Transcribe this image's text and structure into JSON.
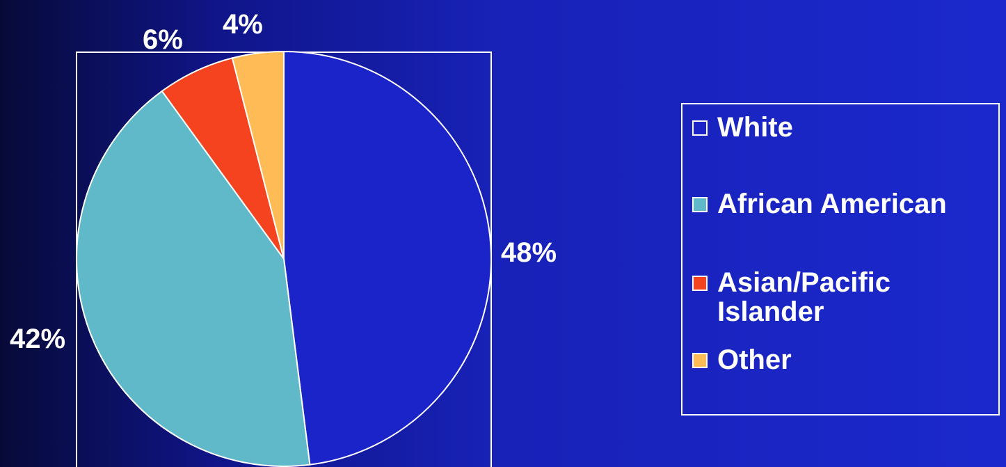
{
  "chart_data": {
    "type": "pie",
    "categories": [
      "White",
      "African American",
      "Asian/Pacific Islander",
      "Other"
    ],
    "values": [
      48,
      42,
      6,
      4
    ],
    "value_labels": [
      "48%",
      "42%",
      "6%",
      "4%"
    ],
    "colors": [
      "#1a24c9",
      "#5fb9c8",
      "#f5421f",
      "#ffbb55"
    ],
    "legend_labels": [
      "White",
      "African American",
      "Asian/Pacific Islander",
      "Other"
    ],
    "legend_placement": "right"
  }
}
